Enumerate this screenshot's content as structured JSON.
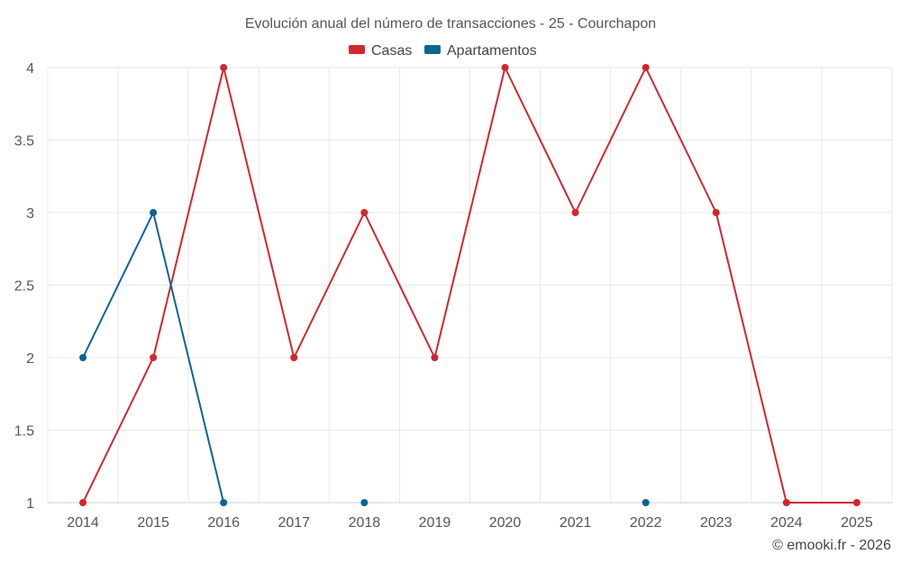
{
  "chart_data": {
    "type": "line",
    "title": "Evolución anual del número de transacciones - 25 - Courchapon",
    "categories": [
      "2014",
      "2015",
      "2016",
      "2017",
      "2018",
      "2019",
      "2020",
      "2021",
      "2022",
      "2023",
      "2024",
      "2025"
    ],
    "series": [
      {
        "name": "Casas",
        "color": "#d0272e",
        "values": [
          1,
          2,
          4,
          2,
          3,
          2,
          4,
          3,
          4,
          3,
          1,
          1
        ]
      },
      {
        "name": "Apartamentos",
        "color": "#0b6496",
        "values": [
          2,
          3,
          1,
          null,
          1,
          null,
          null,
          null,
          1,
          null,
          null,
          null
        ]
      }
    ],
    "yticks": [
      "1",
      "1.5",
      "2",
      "2.5",
      "3",
      "3.5",
      "4"
    ],
    "ylim": [
      1,
      4
    ],
    "xlabel": "",
    "ylabel": "",
    "legend_position": "top-center",
    "grid": true
  },
  "credit": "© emooki.fr - 2026"
}
